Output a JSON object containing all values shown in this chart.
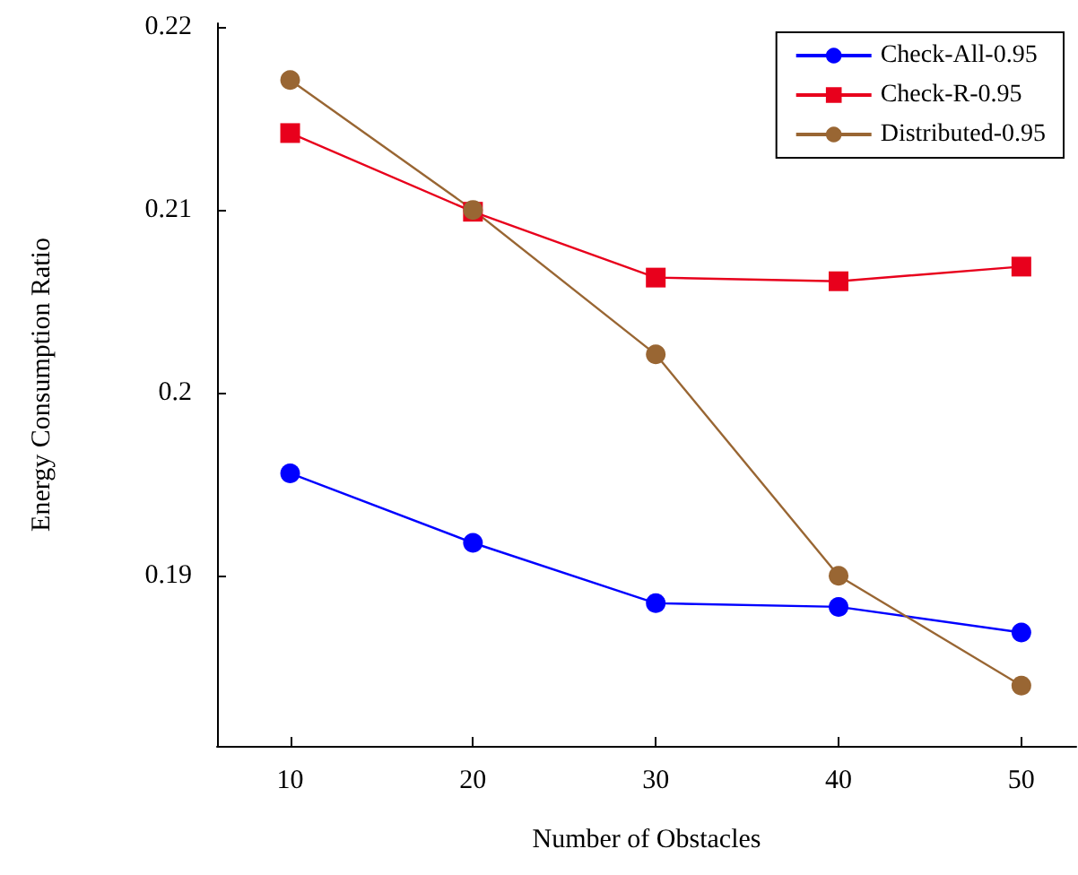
{
  "chart_data": {
    "type": "line",
    "xlabel": "Number of Obstacles",
    "ylabel": "Energy Consumption Ratio",
    "x": [
      10,
      20,
      30,
      40,
      50
    ],
    "series": [
      {
        "name": "Check-All-0.95",
        "color": "#0000ff",
        "marker": "circle",
        "values": [
          0.1956,
          0.1918,
          0.1885,
          0.1883,
          0.1869
        ]
      },
      {
        "name": "Check-R-0.95",
        "color": "#e8001c",
        "marker": "square",
        "values": [
          0.2142,
          0.2099,
          0.2063,
          0.2061,
          0.2069
        ]
      },
      {
        "name": "Distributed-0.95",
        "color": "#996633",
        "marker": "circle",
        "values": [
          0.2171,
          0.21,
          0.2021,
          0.19,
          0.184
        ]
      }
    ],
    "xlim": [
      6,
      53
    ],
    "xticks": [
      10,
      20,
      30,
      40,
      50
    ],
    "ylim": [
      0.1807,
      0.2202
    ],
    "yticks": [
      0.19,
      {
        "value": 0.2,
        "label": "0.2"
      },
      0.21,
      0.22
    ],
    "grid": false,
    "legend": "top right",
    "line_style": "solid"
  }
}
